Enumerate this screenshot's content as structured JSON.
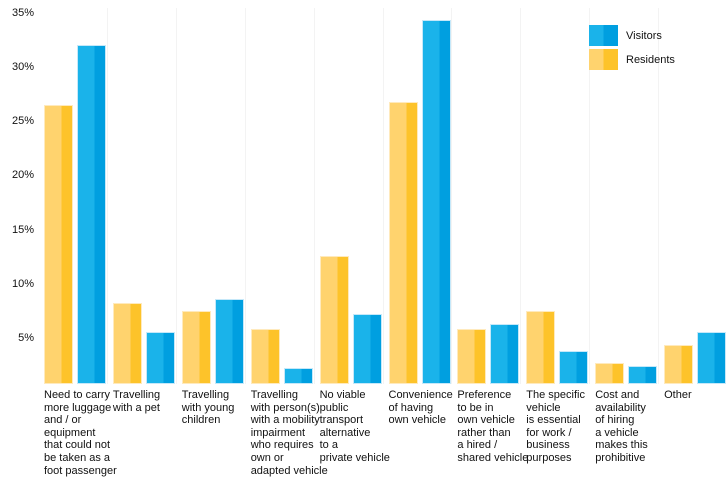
{
  "chart_data": {
    "type": "bar",
    "title": "",
    "xlabel": "",
    "ylabel": "",
    "ymax": 35,
    "yticks": [
      "35%",
      "30%",
      "25%",
      "20%",
      "15%",
      "10%",
      "5%"
    ],
    "ytick_values": [
      35,
      30,
      25,
      20,
      15,
      10,
      5
    ],
    "grid": "faint-vertical-separators",
    "legend_position": "top-right",
    "categories": [
      "Need to carry\nmore luggage\nand / or\nequipment\nthat could not\nbe taken as a\nfoot passenger",
      "Travelling\nwith a pet",
      "Travelling\nwith young\nchildren",
      "Travelling\nwith person(s)\nwith a mobility\nimpairment\nwho requires\nown or\nadapted vehicle",
      "No viable\npublic\ntransport\nalternative\nto a\nprivate vehicle",
      "Convenience\nof having\nown vehicle",
      "Preference\nto be in\nown vehicle\nrather than\na hired /\nshared vehicle",
      "The specific\nvehicle\nis essential\nfor work /\nbusiness\npurposes",
      "Cost and\navailability\nof hiring\na vehicle\nmakes this\nprohibitive",
      "Other"
    ],
    "series": [
      {
        "name": "Visitors",
        "values": [
          32.0,
          5.5,
          8.6,
          2.2,
          7.2,
          34.3,
          6.3,
          3.8,
          2.4,
          5.5
        ],
        "color_light": "#1ab3ea",
        "color_dark": "#009fe0",
        "border_color": "#c5e8f9"
      },
      {
        "name": "Residents",
        "values": [
          26.5,
          8.2,
          7.5,
          5.8,
          12.6,
          26.8,
          5.8,
          7.5,
          2.7,
          4.3
        ],
        "color_light": "#ffd36e",
        "color_dark": "#fdc32a",
        "border_color": "#ffeabd"
      }
    ],
    "bar_order_left_to_right": [
      "Residents",
      "Visitors"
    ]
  },
  "legend": {
    "items": [
      {
        "label": "Visitors"
      },
      {
        "label": "Residents"
      }
    ]
  }
}
